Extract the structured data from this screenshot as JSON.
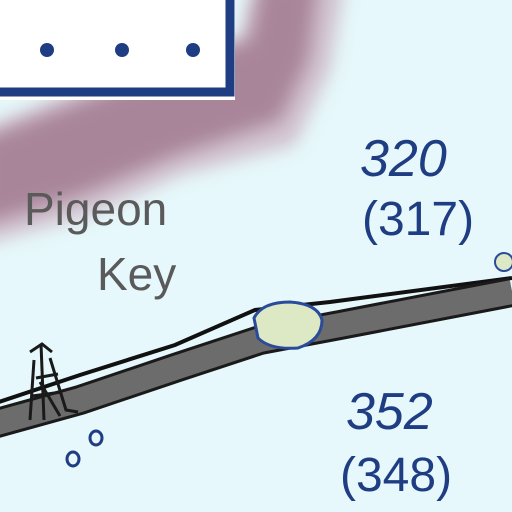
{
  "map": {
    "place_name_line1": "Pigeon",
    "place_name_line2": "Key",
    "markers": [
      {
        "primary": "320",
        "secondary": "(317)"
      },
      {
        "primary": "352",
        "secondary": "(348)"
      }
    ]
  },
  "colors": {
    "water": "#e6f8fb",
    "land_band": "#a9859a",
    "land_glow": "#cdb8c6",
    "boundary": "#1f3d82",
    "road": "#6c6c6c",
    "label_text": "#5a5a5a",
    "marker_text": "#1f3d82",
    "key_island": "#dde8c4"
  }
}
